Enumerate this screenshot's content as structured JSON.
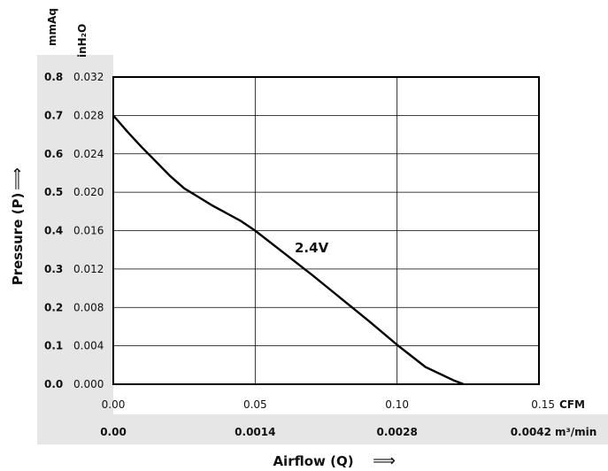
{
  "colors": {
    "bg_band": "#e6e6e6",
    "line": "#000000",
    "grid": "#000000",
    "text": "#111111"
  },
  "chart_data": {
    "type": "line",
    "xlabel": "Airflow (Q)",
    "ylabel": "Pressure (P)",
    "x_unit_primary": "CFM",
    "x_unit_secondary": "m³/min",
    "y_unit_primary": "inH₂O",
    "y_unit_secondary": "mmAq",
    "xlim": [
      0,
      0.15
    ],
    "ylim": [
      0,
      0.032
    ],
    "grid": true,
    "x_ticks_cfm": [
      "0.00",
      "0.05",
      "0.10",
      "0.15"
    ],
    "x_ticks_m3min": [
      "0.00",
      "0.0014",
      "0.0028",
      "0.0042"
    ],
    "y_ticks_inh2o": [
      "0.000",
      "0.004",
      "0.008",
      "0.012",
      "0.016",
      "0.020",
      "0.024",
      "0.028",
      "0.032"
    ],
    "y_ticks_mmaq": [
      "0.0",
      "0.1",
      "0.2",
      "0.3",
      "0.4",
      "0.5",
      "0.6",
      "0.7",
      "0.8"
    ],
    "series": [
      {
        "name": "2.4V",
        "x": [
          0.0,
          0.005,
          0.01,
          0.015,
          0.02,
          0.025,
          0.03,
          0.035,
          0.04,
          0.045,
          0.05,
          0.06,
          0.07,
          0.08,
          0.09,
          0.1,
          0.11,
          0.12,
          0.1235
        ],
        "y": [
          0.028,
          0.0263,
          0.0247,
          0.0232,
          0.0217,
          0.0204,
          0.0195,
          0.0186,
          0.0178,
          0.017,
          0.016,
          0.0137,
          0.0114,
          0.009,
          0.0066,
          0.0041,
          0.0018,
          0.0004,
          0.0
        ]
      }
    ],
    "annotation": "2.4V"
  }
}
